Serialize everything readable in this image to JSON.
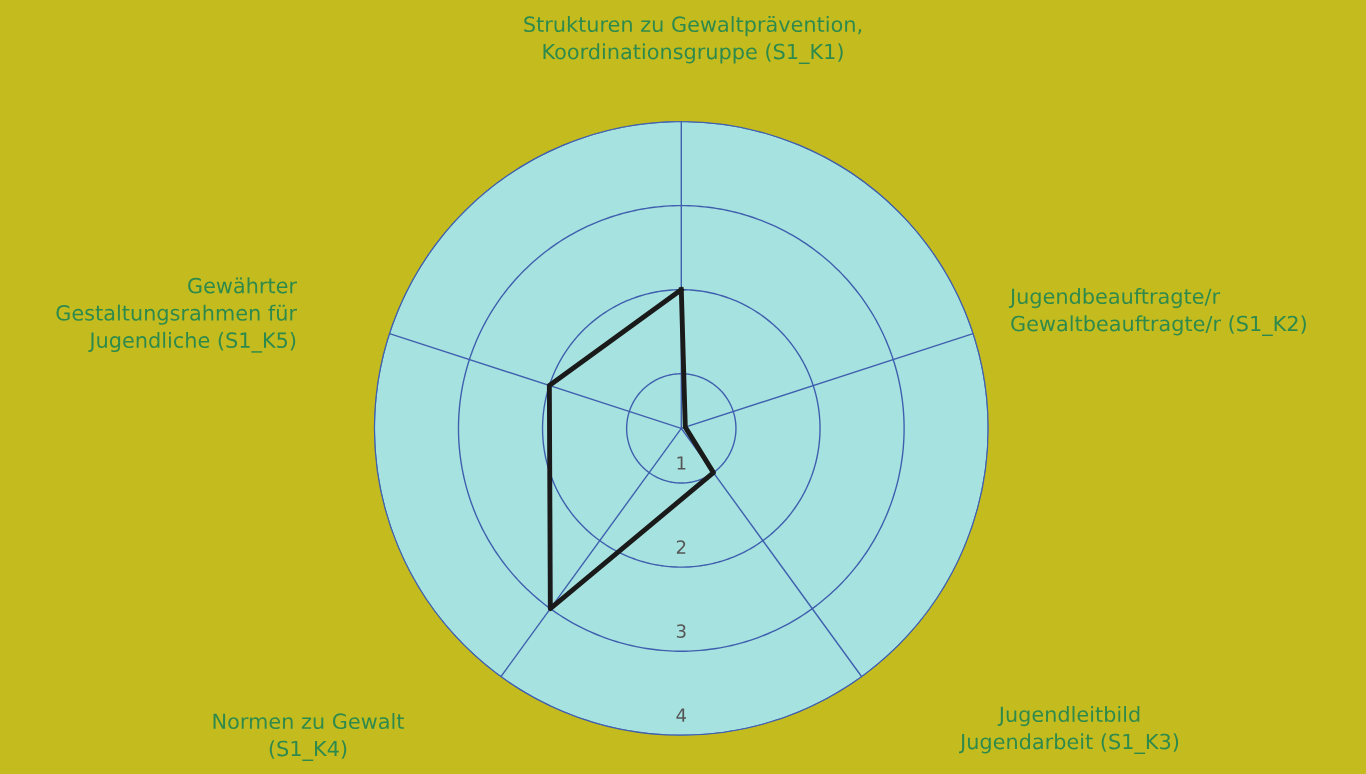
{
  "chart_data": {
    "type": "radar",
    "categories": [
      "Strukturen zu Gewaltprävention,\nKoordinationsgruppe (S1_K1)",
      "Jugendbeauftragte/r\nGewaltbeauftragte/r (S1_K2)",
      "Jugendleitbild\nJugendarbeit (S1_K3)",
      "Normen zu Gewalt\n(S1_K4)",
      "Gewährter\nGestaltungsrahmen für\nJugendliche (S1_K5)"
    ],
    "series": [
      {
        "color": "#1a1a1a",
        "values": [
          2,
          0.4,
          1,
          3,
          2
        ]
      }
    ],
    "ylim": [
      0.35,
      4
    ],
    "yticks": [
      1,
      2,
      3,
      4
    ],
    "grid": true,
    "marker": "none",
    "line_style": "solid"
  }
}
